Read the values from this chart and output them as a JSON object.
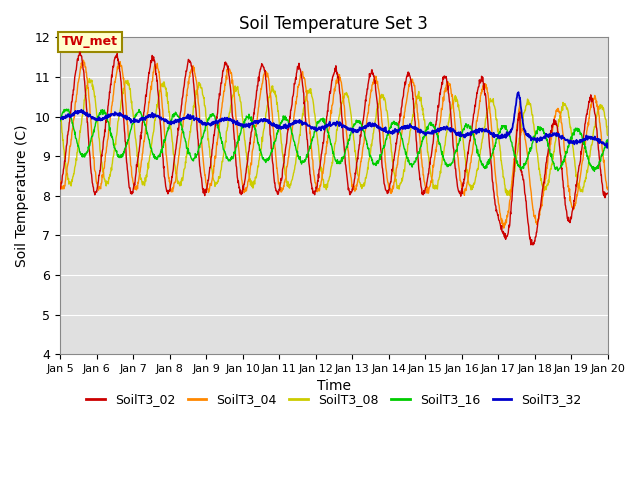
{
  "title": "Soil Temperature Set 3",
  "xlabel": "Time",
  "ylabel": "Soil Temperature (C)",
  "ylim": [
    4.0,
    12.0
  ],
  "yticks": [
    4.0,
    5.0,
    6.0,
    7.0,
    8.0,
    9.0,
    10.0,
    11.0,
    12.0
  ],
  "xlim_days": [
    5,
    20
  ],
  "xtick_days": [
    5,
    6,
    7,
    8,
    9,
    10,
    11,
    12,
    13,
    14,
    15,
    16,
    17,
    18,
    19,
    20
  ],
  "xtick_labels": [
    "Jan 5",
    "Jan 6",
    "Jan 7",
    "Jan 8",
    "Jan 9",
    "Jan 10",
    "Jan 11",
    "Jan 12",
    "Jan 13",
    "Jan 14",
    "Jan 15",
    "Jan 16",
    "Jan 17",
    "Jan 18",
    "Jan 19",
    "Jan 20"
  ],
  "legend_labels": [
    "SoilT3_02",
    "SoilT3_04",
    "SoilT3_08",
    "SoilT3_16",
    "SoilT3_32"
  ],
  "line_colors": [
    "#cc0000",
    "#ff8800",
    "#cccc00",
    "#00cc00",
    "#0000cc"
  ],
  "annotation_text": "TW_met",
  "annotation_color": "#cc0000",
  "annotation_box_color": "#ffffcc",
  "background_color": "#e0e0e0",
  "grid_color": "#ffffff",
  "title_fontsize": 12,
  "axis_fontsize": 10,
  "tick_fontsize": 9,
  "legend_fontsize": 9,
  "n_points": 1500
}
